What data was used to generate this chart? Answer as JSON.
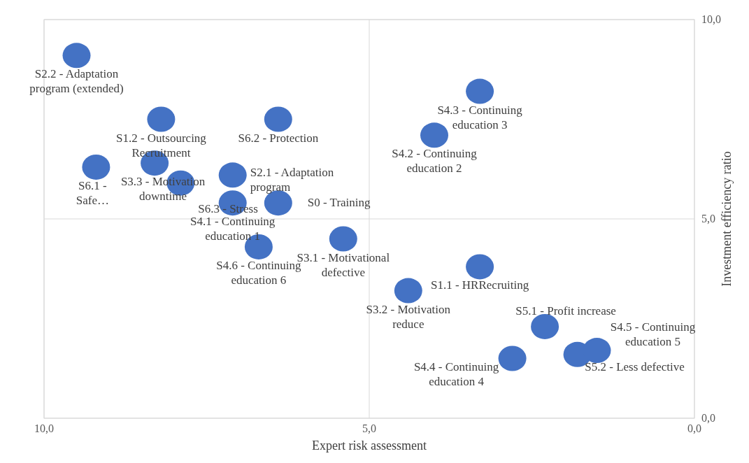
{
  "chart_data": {
    "type": "scatter",
    "xlabel": "Expert risk assessment",
    "ylabel": "Investment efficiency ratio",
    "color": "#4472c4",
    "marker": "circle",
    "grid": true,
    "xlim": [
      10,
      0
    ],
    "xticks": [
      {
        "value": 10,
        "label": "10,0"
      },
      {
        "value": 5,
        "label": "5,0"
      },
      {
        "value": 0,
        "label": "0,0"
      }
    ],
    "ylim": [
      0,
      10
    ],
    "yticks": [
      {
        "value": 0,
        "label": "0,0"
      },
      {
        "value": 5,
        "label": "5,0"
      },
      {
        "value": 10,
        "label": "10,0"
      }
    ],
    "x": [
      9.5,
      8.2,
      6.4,
      3.3,
      4.0,
      9.2,
      8.3,
      7.9,
      7.1,
      7.1,
      6.4,
      6.7,
      5.4,
      3.3,
      4.4,
      2.3,
      2.8,
      1.8,
      1.5
    ],
    "values": [
      9.1,
      7.5,
      7.5,
      8.2,
      7.1,
      6.3,
      6.4,
      5.9,
      6.1,
      5.4,
      5.4,
      4.3,
      4.5,
      3.8,
      3.2,
      2.3,
      1.5,
      1.6,
      1.7
    ],
    "annotations": [
      {
        "text": "S2.2 - Adaptation program (extended)",
        "x": 9.5,
        "y": 9.1
      },
      {
        "text": "S1.2 - Outsourcing Recruitment",
        "x": 8.2,
        "y": 7.5
      },
      {
        "text": "S6.2 - Protection",
        "x": 6.4,
        "y": 7.5
      },
      {
        "text": "S4.3 - Continuing education 3",
        "x": 3.3,
        "y": 8.2
      },
      {
        "text": "S4.2 - Continuing education 2",
        "x": 4.0,
        "y": 7.1
      },
      {
        "text": "S6.1 - Safe…",
        "x": 9.2,
        "y": 6.3
      },
      {
        "text": "S3.3 - Motivation downtime",
        "x": 8.3,
        "y": 6.4
      },
      {
        "text": "S6.3 - Stress",
        "x": 7.9,
        "y": 5.9
      },
      {
        "text": "S2.1 - Adaptation program",
        "x": 7.1,
        "y": 6.1
      },
      {
        "text": "S4.1 - Continuing education 1",
        "x": 7.1,
        "y": 5.4
      },
      {
        "text": "S0 - Training",
        "x": 6.4,
        "y": 5.4
      },
      {
        "text": "S4.6 - Continuing education 6",
        "x": 6.7,
        "y": 4.3
      },
      {
        "text": "S3.1 - Motivational defective",
        "x": 5.4,
        "y": 4.5
      },
      {
        "text": "S1.1 - HRRecruiting",
        "x": 3.3,
        "y": 3.8
      },
      {
        "text": "S3.2 - Motivation reduce",
        "x": 4.4,
        "y": 3.2
      },
      {
        "text": "S5.1 - Profit increase",
        "x": 2.3,
        "y": 2.3
      },
      {
        "text": "S4.4 - Continuing education 4",
        "x": 2.8,
        "y": 1.5
      },
      {
        "text": "S5.2 - Less defective",
        "x": 1.8,
        "y": 1.6
      },
      {
        "text": "S4.5 - Continuing education 5",
        "x": 1.5,
        "y": 1.7
      }
    ]
  }
}
